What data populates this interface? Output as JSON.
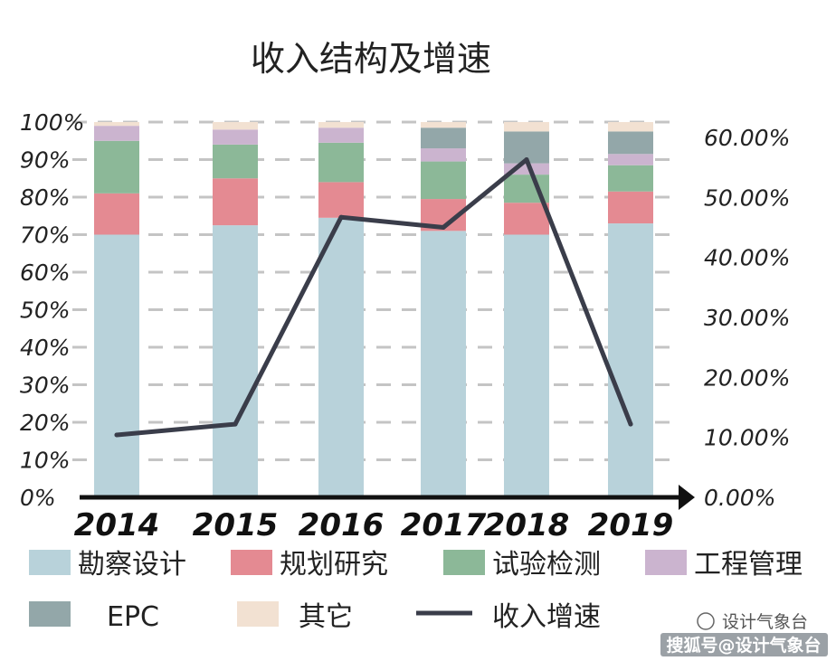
{
  "chart_data": {
    "type": "bar",
    "title": "收入结构及增速",
    "categories": [
      "2014",
      "2015",
      "2016",
      "2017",
      "2018",
      "2019"
    ],
    "series": [
      {
        "name": "勘察设计",
        "color": "#b8d2da",
        "values": [
          70,
          72.5,
          74.5,
          71,
          70,
          73
        ]
      },
      {
        "name": "规划研究",
        "color": "#e48a92",
        "values": [
          11,
          12.5,
          9.5,
          8.5,
          8.5,
          8.5
        ]
      },
      {
        "name": "试验检测",
        "color": "#8cb898",
        "values": [
          14,
          9,
          10.5,
          10,
          7.5,
          7
        ]
      },
      {
        "name": "工程管理",
        "color": "#cbb4cf",
        "values": [
          4,
          4,
          4,
          3.5,
          3,
          3
        ]
      },
      {
        "name": "EPC",
        "color": "#93a7a9",
        "values": [
          0,
          0,
          0,
          5.5,
          8.5,
          6
        ]
      },
      {
        "name": "其它",
        "color": "#f2e1d2",
        "values": [
          1,
          2,
          1.5,
          1.5,
          2.5,
          2.5
        ]
      }
    ],
    "line_series": {
      "name": "收入增速",
      "color": "#3a3d4a",
      "values": [
        10.4,
        12.2,
        46.7,
        45.0,
        56.3,
        12.2
      ]
    },
    "y_left": {
      "ticks": [
        "0%",
        "10%",
        "20%",
        "30%",
        "40%",
        "50%",
        "60%",
        "70%",
        "80%",
        "90%",
        "100%"
      ],
      "ylim": [
        0,
        100
      ]
    },
    "y_right": {
      "ticks": [
        "0.00%",
        "10.00%",
        "20.00%",
        "30.00%",
        "40.00%",
        "50.00%",
        "60.00%"
      ],
      "ylim": [
        0,
        60
      ]
    },
    "grid": true,
    "legend_position": "bottom"
  },
  "watermark": {
    "line1": "设计气象台",
    "line2": "搜狐号@设计气象台"
  }
}
